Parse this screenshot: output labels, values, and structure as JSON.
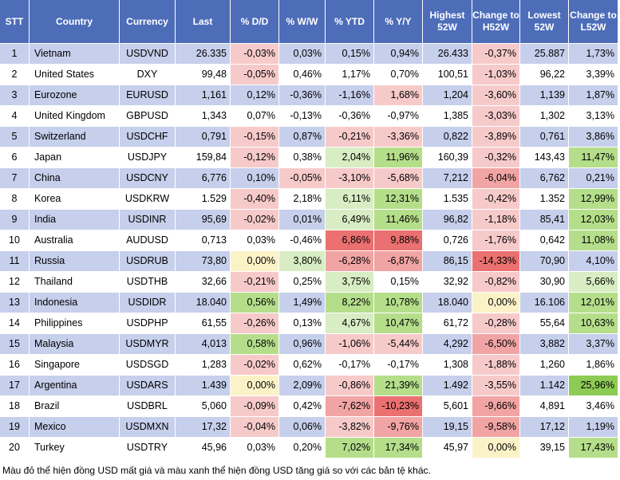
{
  "colors": {
    "header_bg": "#4d6db9",
    "header_text": "#ffffff",
    "row_alt_bg": "#c6cfeb",
    "row_bg": "#ffffff",
    "grid_line": "#ffffff",
    "text": "#000000"
  },
  "chart_data": {
    "type": "table",
    "columns": [
      "STT",
      "Country",
      "Currency",
      "Last",
      "% D/D",
      "% W/W",
      "% YTD",
      "% Y/Y",
      "Highest\n52W",
      "Change to\nH52W",
      "Lowest\n52W",
      "Change to\nL52W"
    ],
    "rows": [
      {
        "cells": [
          "1",
          "Vietnam",
          "USDVND",
          "26.335",
          "-0,03%",
          "0,03%",
          "0,15%",
          "0,94%",
          "26.433",
          "-0,37%",
          "25.887",
          "1,73%"
        ],
        "fills": [
          null,
          null,
          null,
          null,
          "#f7caca",
          null,
          null,
          null,
          null,
          "#f7caca",
          null,
          null
        ]
      },
      {
        "cells": [
          "2",
          "United States",
          "DXY",
          "99,48",
          "-0,05%",
          "0,46%",
          "1,17%",
          "0,70%",
          "100,51",
          "-1,03%",
          "96,22",
          "3,39%"
        ],
        "fills": [
          null,
          null,
          null,
          null,
          "#f7caca",
          null,
          null,
          null,
          null,
          "#f7caca",
          null,
          null
        ]
      },
      {
        "cells": [
          "3",
          "Eurozone",
          "EURUSD",
          "1,161",
          "0,12%",
          "-0,36%",
          "-1,16%",
          "1,68%",
          "1,204",
          "-3,60%",
          "1,139",
          "1,87%"
        ],
        "fills": [
          null,
          null,
          null,
          null,
          null,
          null,
          null,
          "#f7caca",
          null,
          "#f7caca",
          null,
          null
        ]
      },
      {
        "cells": [
          "4",
          "United Kingdom",
          "GBPUSD",
          "1,343",
          "0,07%",
          "-0,13%",
          "-0,36%",
          "-0,97%",
          "1,385",
          "-3,03%",
          "1,302",
          "3,13%"
        ],
        "fills": [
          null,
          null,
          null,
          null,
          null,
          null,
          null,
          null,
          null,
          "#f7caca",
          null,
          null
        ]
      },
      {
        "cells": [
          "5",
          "Switzerland",
          "USDCHF",
          "0,791",
          "-0,15%",
          "0,87%",
          "-0,21%",
          "-3,36%",
          "0,822",
          "-3,89%",
          "0,761",
          "3,86%"
        ],
        "fills": [
          null,
          null,
          null,
          null,
          "#f7caca",
          null,
          "#f7caca",
          "#f7caca",
          null,
          "#f7caca",
          null,
          null
        ]
      },
      {
        "cells": [
          "6",
          "Japan",
          "USDJPY",
          "159,84",
          "-0,12%",
          "0,38%",
          "2,04%",
          "11,96%",
          "160,39",
          "-0,32%",
          "143,43",
          "11,47%"
        ],
        "fills": [
          null,
          null,
          null,
          null,
          "#f7caca",
          null,
          "#d8edc3",
          "#b5de8b",
          null,
          "#f7caca",
          null,
          "#b5de8b"
        ]
      },
      {
        "cells": [
          "7",
          "China",
          "USDCNY",
          "6,776",
          "0,10%",
          "-0,05%",
          "-3,10%",
          "-5,68%",
          "7,212",
          "-6,04%",
          "6,762",
          "0,21%"
        ],
        "fills": [
          null,
          null,
          null,
          null,
          null,
          "#f7caca",
          "#f7caca",
          "#f7caca",
          null,
          "#f1a4a4",
          null,
          null
        ]
      },
      {
        "cells": [
          "8",
          "Korea",
          "USDKRW",
          "1.529",
          "-0,40%",
          "2,18%",
          "6,11%",
          "12,31%",
          "1.535",
          "-0,42%",
          "1.352",
          "12,99%"
        ],
        "fills": [
          null,
          null,
          null,
          null,
          "#f7caca",
          null,
          "#d8edc3",
          "#b5de8b",
          null,
          "#f7caca",
          null,
          "#b5de8b"
        ]
      },
      {
        "cells": [
          "9",
          "India",
          "USDINR",
          "95,69",
          "-0,02%",
          "0,01%",
          "6,49%",
          "11,46%",
          "96,82",
          "-1,18%",
          "85,41",
          "12,03%"
        ],
        "fills": [
          null,
          null,
          null,
          null,
          "#f7caca",
          null,
          "#d8edc3",
          "#b5de8b",
          null,
          "#f7caca",
          null,
          "#b5de8b"
        ]
      },
      {
        "cells": [
          "10",
          "Australia",
          "AUDUSD",
          "0,713",
          "0,03%",
          "-0,46%",
          "6,86%",
          "9,88%",
          "0,726",
          "-1,76%",
          "0,642",
          "11,08%"
        ],
        "fills": [
          null,
          null,
          null,
          null,
          null,
          null,
          "#eb7070",
          "#eb7070",
          null,
          "#f7caca",
          null,
          "#b5de8b"
        ]
      },
      {
        "cells": [
          "11",
          "Russia",
          "USDRUB",
          "73,80",
          "0,00%",
          "3,80%",
          "-6,28%",
          "-6,87%",
          "86,15",
          "-14,33%",
          "70,90",
          "4,10%"
        ],
        "fills": [
          null,
          null,
          null,
          null,
          "#fcf2c8",
          "#d8edc3",
          "#f1a4a4",
          "#f1a4a4",
          null,
          "#eb7070",
          null,
          null
        ]
      },
      {
        "cells": [
          "12",
          "Thailand",
          "USDTHB",
          "32,66",
          "-0,21%",
          "0,25%",
          "3,75%",
          "0,15%",
          "32,92",
          "-0,82%",
          "30,90",
          "5,66%"
        ],
        "fills": [
          null,
          null,
          null,
          null,
          "#f7caca",
          null,
          "#d8edc3",
          null,
          null,
          "#f7caca",
          null,
          "#d8edc3"
        ]
      },
      {
        "cells": [
          "13",
          "Indonesia",
          "USDIDR",
          "18.040",
          "0,56%",
          "1,49%",
          "8,22%",
          "10,78%",
          "18.040",
          "0,00%",
          "16.106",
          "12,01%"
        ],
        "fills": [
          null,
          null,
          null,
          null,
          "#b5de8b",
          null,
          "#b5de8b",
          "#b5de8b",
          null,
          "#fcf2c8",
          null,
          "#b5de8b"
        ]
      },
      {
        "cells": [
          "14",
          "Philippines",
          "USDPHP",
          "61,55",
          "-0,26%",
          "0,13%",
          "4,67%",
          "10,47%",
          "61,72",
          "-0,28%",
          "55,64",
          "10,63%"
        ],
        "fills": [
          null,
          null,
          null,
          null,
          "#f7caca",
          null,
          "#d8edc3",
          "#b5de8b",
          null,
          "#f7caca",
          null,
          "#b5de8b"
        ]
      },
      {
        "cells": [
          "15",
          "Malaysia",
          "USDMYR",
          "4,013",
          "0,58%",
          "0,96%",
          "-1,06%",
          "-5,44%",
          "4,292",
          "-6,50%",
          "3,882",
          "3,37%"
        ],
        "fills": [
          null,
          null,
          null,
          null,
          "#b5de8b",
          null,
          "#f7caca",
          "#f7caca",
          null,
          "#f1a4a4",
          null,
          null
        ]
      },
      {
        "cells": [
          "16",
          "Singapore",
          "USDSGD",
          "1,283",
          "-0,02%",
          "0,62%",
          "-0,17%",
          "-0,17%",
          "1,308",
          "-1,88%",
          "1,260",
          "1,86%"
        ],
        "fills": [
          null,
          null,
          null,
          null,
          "#f7caca",
          null,
          null,
          null,
          null,
          "#f7caca",
          null,
          null
        ]
      },
      {
        "cells": [
          "17",
          "Argentina",
          "USDARS",
          "1.439",
          "0,00%",
          "2,09%",
          "-0,86%",
          "21,39%",
          "1.492",
          "-3,55%",
          "1.142",
          "25,96%"
        ],
        "fills": [
          null,
          null,
          null,
          null,
          "#fcf2c8",
          null,
          "#f7caca",
          "#b5de8b",
          null,
          "#f7caca",
          null,
          "#8dcb55"
        ]
      },
      {
        "cells": [
          "18",
          "Brazil",
          "USDBRL",
          "5,060",
          "-0,09%",
          "0,42%",
          "-7,62%",
          "-10,23%",
          "5,601",
          "-9,66%",
          "4,891",
          "3,46%"
        ],
        "fills": [
          null,
          null,
          null,
          null,
          "#f7caca",
          null,
          "#f1a4a4",
          "#eb7070",
          null,
          "#f1a4a4",
          null,
          null
        ]
      },
      {
        "cells": [
          "19",
          "Mexico",
          "USDMXN",
          "17,32",
          "-0,04%",
          "0,06%",
          "-3,82%",
          "-9,76%",
          "19,15",
          "-9,58%",
          "17,12",
          "1,19%"
        ],
        "fills": [
          null,
          null,
          null,
          null,
          "#f7caca",
          null,
          "#f7caca",
          "#f1a4a4",
          null,
          "#f1a4a4",
          null,
          null
        ]
      },
      {
        "cells": [
          "20",
          "Turkey",
          "USDTRY",
          "45,96",
          "0,03%",
          "0,20%",
          "7,02%",
          "17,34%",
          "45,97",
          "0,00%",
          "39,15",
          "17,43%"
        ],
        "fills": [
          null,
          null,
          null,
          null,
          null,
          null,
          "#b5de8b",
          "#b5de8b",
          null,
          "#fcf2c8",
          null,
          "#b5de8b"
        ]
      }
    ]
  },
  "footnote": "Màu đỏ thể hiện đồng USD mất giá và màu xanh thể hiện đồng USD tăng giá so với các bản tệ khác."
}
